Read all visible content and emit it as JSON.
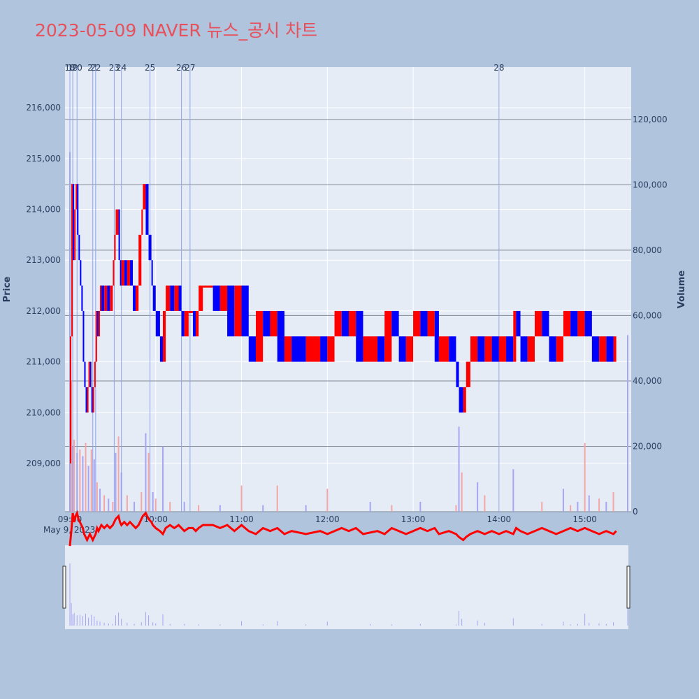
{
  "title": "2023-05-09 NAVER 뉴스_공시 차트",
  "colors": {
    "up": "#ff0000",
    "down": "#0000ff",
    "volume_up": "#f4a6a6",
    "volume_down": "#a6a6f4",
    "title": "#e8505b",
    "plot_bg": "#e5ecf6",
    "page_bg": "#b0c4de",
    "news_line": "#8fa4ef"
  },
  "chart_data": {
    "type": "candlestick",
    "title": "2023-05-09 NAVER 뉴스_공시 차트",
    "date_label": "May 9, 2023",
    "x_ticks": [
      "09:00",
      "10:00",
      "11:00",
      "12:00",
      "13:00",
      "14:00",
      "15:00"
    ],
    "x_range": [
      "09:00",
      "15:30"
    ],
    "y_label": "Price",
    "y_ticks": [
      209000,
      210000,
      211000,
      212000,
      213000,
      214000,
      215000,
      216000
    ],
    "y_ticks_text": [
      "209,000",
      "210,000",
      "211,000",
      "212,000",
      "213,000",
      "214,000",
      "215,000",
      "216,000"
    ],
    "y_range": [
      208050,
      216800
    ],
    "y2_label": "Volume",
    "y2_ticks": [
      0,
      20000,
      40000,
      60000,
      80000,
      100000,
      120000
    ],
    "y2_ticks_text": [
      "0",
      "20,000",
      "40,000",
      "60,000",
      "80,000",
      "100,000",
      "120,000"
    ],
    "y2_range": [
      0,
      136000
    ],
    "grid": true,
    "rangeslider": true,
    "news_markers": [
      {
        "label": "18",
        "time": "09:00"
      },
      {
        "label": "19",
        "time": "09:02"
      },
      {
        "label": "20",
        "time": "09:05"
      },
      {
        "label": "21",
        "time": "09:16"
      },
      {
        "label": "22",
        "time": "09:18"
      },
      {
        "label": "23",
        "time": "09:31"
      },
      {
        "label": "24",
        "time": "09:36"
      },
      {
        "label": "25",
        "time": "09:56"
      },
      {
        "label": "26",
        "time": "10:18"
      },
      {
        "label": "27",
        "time": "10:24"
      },
      {
        "label": "28",
        "time": "14:00"
      }
    ],
    "price_path": [
      [
        "09:00",
        209000
      ],
      [
        "09:01",
        211500
      ],
      [
        "09:02",
        214500
      ],
      [
        "09:03",
        213000
      ],
      [
        "09:04",
        214000
      ],
      [
        "09:05",
        214500
      ],
      [
        "09:06",
        213500
      ],
      [
        "09:07",
        213000
      ],
      [
        "09:08",
        212500
      ],
      [
        "09:09",
        212000
      ],
      [
        "09:10",
        211000
      ],
      [
        "09:11",
        210500
      ],
      [
        "09:12",
        210000
      ],
      [
        "09:13",
        210500
      ],
      [
        "09:14",
        211000
      ],
      [
        "09:15",
        210500
      ],
      [
        "09:16",
        210000
      ],
      [
        "09:17",
        210500
      ],
      [
        "09:18",
        211000
      ],
      [
        "09:19",
        212000
      ],
      [
        "09:20",
        211500
      ],
      [
        "09:21",
        212000
      ],
      [
        "09:22",
        212500
      ],
      [
        "09:24",
        212000
      ],
      [
        "09:26",
        212500
      ],
      [
        "09:28",
        212000
      ],
      [
        "09:30",
        212500
      ],
      [
        "09:31",
        213000
      ],
      [
        "09:32",
        213500
      ],
      [
        "09:34",
        214000
      ],
      [
        "09:35",
        213000
      ],
      [
        "09:36",
        212500
      ],
      [
        "09:38",
        213000
      ],
      [
        "09:40",
        212500
      ],
      [
        "09:42",
        213000
      ],
      [
        "09:44",
        212500
      ],
      [
        "09:46",
        212000
      ],
      [
        "09:48",
        212500
      ],
      [
        "09:50",
        213500
      ],
      [
        "09:51",
        214000
      ],
      [
        "09:53",
        214500
      ],
      [
        "09:55",
        213500
      ],
      [
        "09:57",
        213000
      ],
      [
        "09:58",
        212500
      ],
      [
        "10:00",
        212000
      ],
      [
        "10:03",
        211500
      ],
      [
        "10:05",
        211000
      ],
      [
        "10:07",
        212000
      ],
      [
        "10:10",
        212500
      ],
      [
        "10:13",
        212000
      ],
      [
        "10:16",
        212500
      ],
      [
        "10:18",
        212000
      ],
      [
        "10:20",
        211500
      ],
      [
        "10:23",
        212000
      ],
      [
        "10:26",
        212000
      ],
      [
        "10:28",
        211500
      ],
      [
        "10:30",
        212000
      ],
      [
        "10:33",
        212500
      ],
      [
        "10:40",
        212500
      ],
      [
        "10:45",
        212000
      ],
      [
        "10:50",
        212500
      ],
      [
        "10:55",
        211500
      ],
      [
        "11:00",
        212500
      ],
      [
        "11:05",
        211500
      ],
      [
        "11:10",
        211000
      ],
      [
        "11:15",
        212000
      ],
      [
        "11:20",
        211500
      ],
      [
        "11:25",
        212000
      ],
      [
        "11:30",
        211000
      ],
      [
        "11:35",
        211500
      ],
      [
        "11:45",
        211000
      ],
      [
        "11:55",
        211500
      ],
      [
        "12:00",
        211000
      ],
      [
        "12:05",
        211500
      ],
      [
        "12:10",
        212000
      ],
      [
        "12:15",
        211500
      ],
      [
        "12:20",
        212000
      ],
      [
        "12:25",
        211000
      ],
      [
        "12:35",
        211500
      ],
      [
        "12:40",
        211000
      ],
      [
        "12:45",
        212000
      ],
      [
        "12:50",
        211500
      ],
      [
        "12:55",
        211000
      ],
      [
        "13:00",
        211500
      ],
      [
        "13:05",
        212000
      ],
      [
        "13:10",
        211500
      ],
      [
        "13:15",
        212000
      ],
      [
        "13:18",
        211000
      ],
      [
        "13:25",
        211500
      ],
      [
        "13:30",
        211000
      ],
      [
        "13:32",
        210500
      ],
      [
        "13:35",
        210000
      ],
      [
        "13:37",
        210500
      ],
      [
        "13:40",
        211000
      ],
      [
        "13:45",
        211500
      ],
      [
        "13:50",
        211000
      ],
      [
        "13:55",
        211500
      ],
      [
        "14:00",
        211000
      ],
      [
        "14:05",
        211500
      ],
      [
        "14:10",
        211000
      ],
      [
        "14:12",
        212000
      ],
      [
        "14:15",
        211500
      ],
      [
        "14:20",
        211000
      ],
      [
        "14:25",
        211500
      ],
      [
        "14:30",
        212000
      ],
      [
        "14:35",
        211500
      ],
      [
        "14:40",
        211000
      ],
      [
        "14:45",
        211500
      ],
      [
        "14:50",
        212000
      ],
      [
        "14:55",
        211500
      ],
      [
        "15:00",
        212000
      ],
      [
        "15:05",
        211500
      ],
      [
        "15:10",
        211000
      ],
      [
        "15:15",
        211500
      ],
      [
        "15:20",
        211000
      ],
      [
        "15:22",
        211500
      ]
    ],
    "volume_bars": [
      [
        "09:00",
        110000
      ],
      [
        "09:01",
        40000
      ],
      [
        "09:02",
        20000
      ],
      [
        "09:03",
        22000
      ],
      [
        "09:05",
        18000
      ],
      [
        "09:07",
        19000
      ],
      [
        "09:09",
        17000
      ],
      [
        "09:11",
        21000
      ],
      [
        "09:13",
        14000
      ],
      [
        "09:15",
        19000
      ],
      [
        "09:17",
        16000
      ],
      [
        "09:19",
        9000
      ],
      [
        "09:21",
        7000
      ],
      [
        "09:24",
        5000
      ],
      [
        "09:27",
        4000
      ],
      [
        "09:30",
        3000
      ],
      [
        "09:32",
        18000
      ],
      [
        "09:34",
        23000
      ],
      [
        "09:36",
        12000
      ],
      [
        "09:40",
        5000
      ],
      [
        "09:45",
        3000
      ],
      [
        "09:50",
        6000
      ],
      [
        "09:53",
        24000
      ],
      [
        "09:55",
        18000
      ],
      [
        "09:58",
        6000
      ],
      [
        "10:00",
        4000
      ],
      [
        "10:05",
        20000
      ],
      [
        "10:10",
        3000
      ],
      [
        "10:20",
        3000
      ],
      [
        "10:30",
        2000
      ],
      [
        "10:45",
        2000
      ],
      [
        "11:00",
        8000
      ],
      [
        "11:15",
        2000
      ],
      [
        "11:25",
        8000
      ],
      [
        "11:45",
        2000
      ],
      [
        "12:00",
        7000
      ],
      [
        "12:30",
        3000
      ],
      [
        "12:45",
        2000
      ],
      [
        "13:05",
        3000
      ],
      [
        "13:30",
        2000
      ],
      [
        "13:32",
        26000
      ],
      [
        "13:34",
        12000
      ],
      [
        "13:45",
        9000
      ],
      [
        "13:50",
        5000
      ],
      [
        "14:10",
        13000
      ],
      [
        "14:30",
        3000
      ],
      [
        "14:45",
        7000
      ],
      [
        "14:50",
        2000
      ],
      [
        "14:55",
        3000
      ],
      [
        "15:00",
        21000
      ],
      [
        "15:03",
        5000
      ],
      [
        "15:10",
        4000
      ],
      [
        "15:15",
        3000
      ],
      [
        "15:20",
        6000
      ],
      [
        "15:30",
        54000
      ]
    ]
  }
}
